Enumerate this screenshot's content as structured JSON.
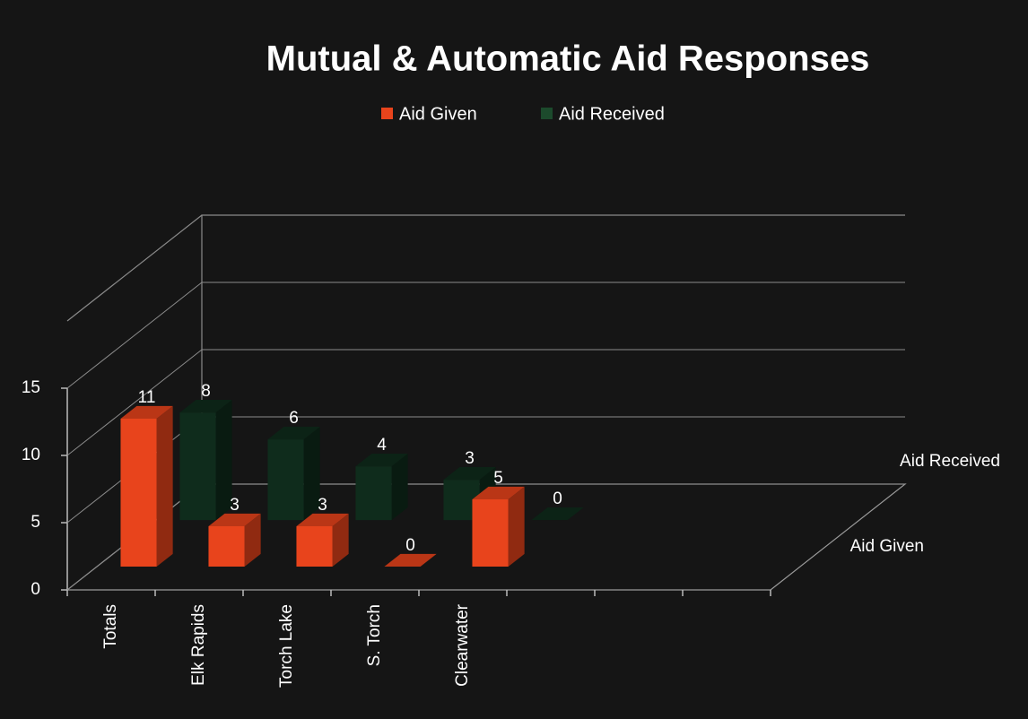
{
  "chart_data": {
    "type": "bar3d",
    "title": "Mutual & Automatic Aid Responses",
    "categories": [
      "Totals",
      "Elk Rapids",
      "Torch Lake",
      "S. Torch",
      "Clearwater"
    ],
    "series": [
      {
        "name": "Aid Given",
        "color": "#e8441c",
        "values": [
          11,
          3,
          3,
          0,
          5
        ]
      },
      {
        "name": "Aid Received",
        "color": "#0f2c1c",
        "values": [
          8,
          6,
          4,
          3,
          0
        ]
      }
    ],
    "ylim": [
      0,
      20
    ],
    "yticks": [
      0,
      5,
      10,
      15
    ],
    "grid": true,
    "legend": "top"
  }
}
